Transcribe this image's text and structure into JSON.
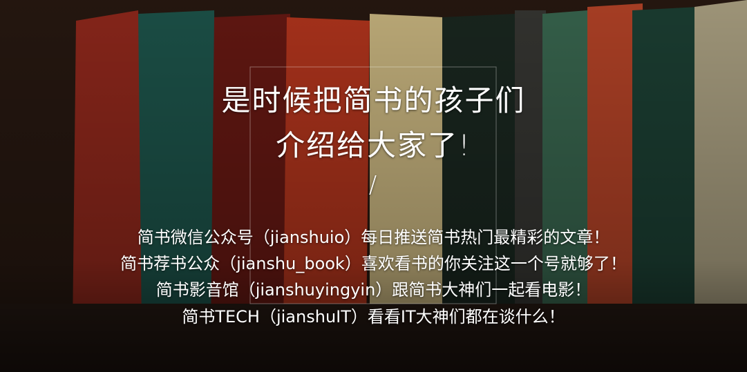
{
  "headline": {
    "lines": [
      "是时候把简书的孩子们",
      "介绍给大家了!"
    ],
    "divider": "/"
  },
  "accounts": [
    "简书微信公众号（jianshuio）每日推送简书热门最精彩的文章！",
    "简书荐书公众（jianshu_book）喜欢看书的你关注这一个号就够了！",
    "简书影音馆（jianshuyingyin）跟简书大神们一起看电影！",
    "简书TECH（jianshuIT）看看IT大神们都在谈什么！"
  ]
}
